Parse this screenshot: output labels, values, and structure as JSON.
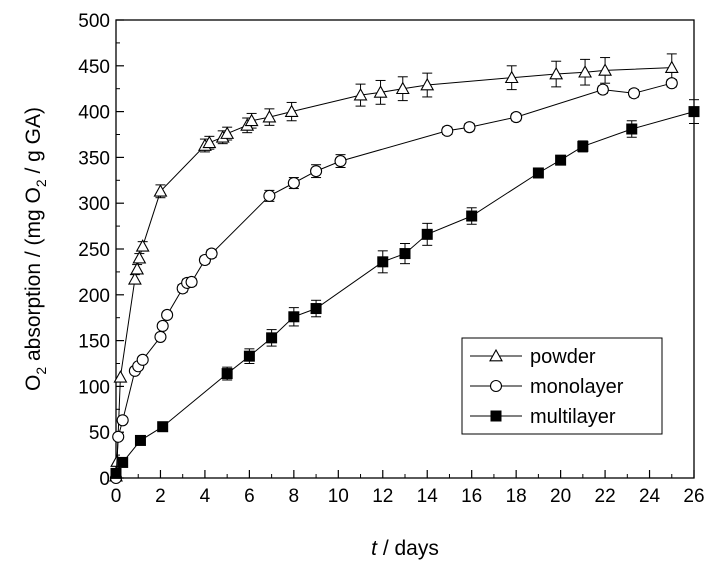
{
  "chart_data": {
    "type": "scatter",
    "xlabel_italic": "t",
    "xlabel_rest": " / days",
    "ylabel_parts": [
      "O",
      "2",
      " absorption / (mg O",
      "2",
      " / g GA)"
    ],
    "xlim": [
      0,
      26
    ],
    "ylim": [
      0,
      500
    ],
    "x_ticks": [
      0,
      2,
      4,
      6,
      8,
      10,
      12,
      14,
      16,
      18,
      20,
      22,
      24,
      26
    ],
    "y_ticks": [
      0,
      50,
      100,
      150,
      200,
      250,
      300,
      350,
      400,
      450,
      500
    ],
    "grid": false,
    "legend_position": "lower-right",
    "series": [
      {
        "name": "powder",
        "marker": "triangle-open",
        "points": [
          [
            0,
            2,
            0
          ],
          [
            0.05,
            18,
            0
          ],
          [
            0.2,
            110,
            0
          ],
          [
            0.85,
            217,
            5
          ],
          [
            0.95,
            228,
            5
          ],
          [
            1.05,
            240,
            5
          ],
          [
            1.2,
            253,
            5
          ],
          [
            2.0,
            313,
            7
          ],
          [
            4.0,
            363,
            7
          ],
          [
            4.2,
            366,
            7
          ],
          [
            4.8,
            372,
            7
          ],
          [
            5.0,
            376,
            7
          ],
          [
            5.9,
            385,
            8
          ],
          [
            6.1,
            390,
            8
          ],
          [
            6.9,
            394,
            9
          ],
          [
            7.9,
            400,
            10
          ],
          [
            11.0,
            418,
            12
          ],
          [
            11.9,
            421,
            13
          ],
          [
            12.9,
            425,
            13
          ],
          [
            14.0,
            429,
            13
          ],
          [
            17.8,
            437,
            13
          ],
          [
            19.8,
            441,
            14
          ],
          [
            21.1,
            443,
            14
          ],
          [
            22.0,
            445,
            14
          ],
          [
            25.0,
            448,
            15
          ]
        ]
      },
      {
        "name": "monolayer",
        "marker": "circle-open",
        "points": [
          [
            0,
            0,
            0
          ],
          [
            0.1,
            45,
            0
          ],
          [
            0.3,
            63,
            0
          ],
          [
            0.85,
            117,
            0
          ],
          [
            1.0,
            122,
            0
          ],
          [
            1.2,
            129,
            0
          ],
          [
            2.0,
            154,
            0
          ],
          [
            2.1,
            166,
            0
          ],
          [
            2.3,
            178,
            0
          ],
          [
            3.0,
            207,
            4
          ],
          [
            3.2,
            213,
            4
          ],
          [
            3.4,
            214,
            4
          ],
          [
            4.0,
            238,
            4
          ],
          [
            4.3,
            245,
            4
          ],
          [
            6.9,
            308,
            6
          ],
          [
            8.0,
            322,
            6
          ],
          [
            9.0,
            335,
            7
          ],
          [
            10.1,
            346,
            7
          ],
          [
            14.9,
            379,
            4
          ],
          [
            15.9,
            383,
            4
          ],
          [
            18.0,
            394,
            4
          ],
          [
            21.9,
            424,
            4
          ],
          [
            23.3,
            420,
            4
          ],
          [
            25.0,
            431,
            4
          ]
        ]
      },
      {
        "name": "multilayer",
        "marker": "square-filled",
        "points": [
          [
            0,
            5,
            0
          ],
          [
            0.3,
            17,
            0
          ],
          [
            1.1,
            41,
            0
          ],
          [
            2.1,
            56,
            0
          ],
          [
            5.0,
            114,
            7
          ],
          [
            6.0,
            133,
            8
          ],
          [
            7.0,
            153,
            9
          ],
          [
            8.0,
            176,
            10
          ],
          [
            9.0,
            185,
            9
          ],
          [
            12.0,
            236,
            12
          ],
          [
            13.0,
            245,
            11
          ],
          [
            14.0,
            266,
            12
          ],
          [
            16.0,
            286,
            9
          ],
          [
            19.0,
            333,
            0
          ],
          [
            20.0,
            347,
            0
          ],
          [
            21.0,
            362,
            6
          ],
          [
            23.2,
            381,
            9
          ],
          [
            26.0,
            400,
            13
          ]
        ]
      }
    ]
  }
}
